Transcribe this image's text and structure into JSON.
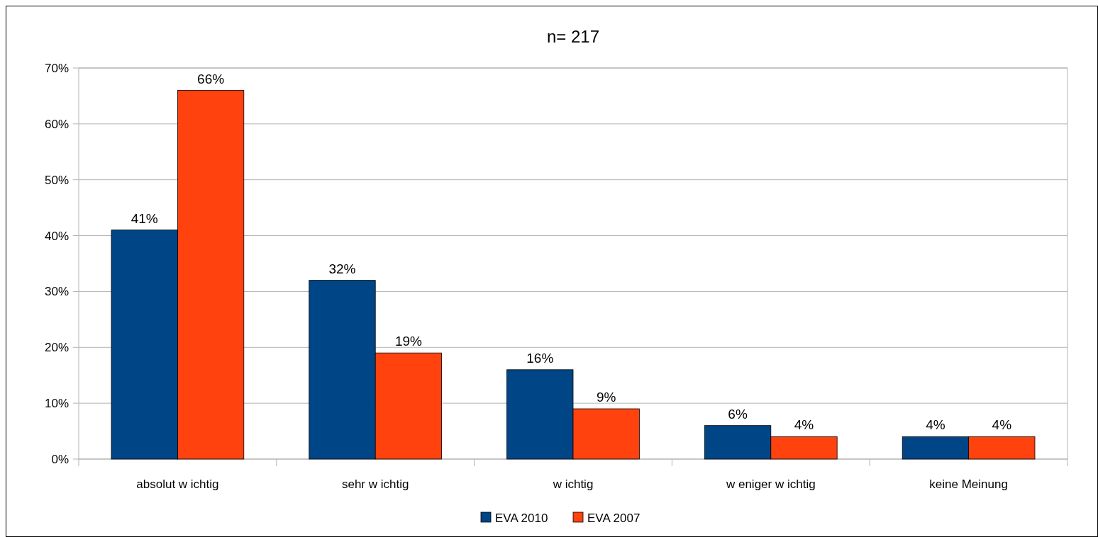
{
  "chart_data": {
    "type": "bar",
    "title": "n= 217",
    "categories": [
      "absolut w ichtig",
      "sehr w ichtig",
      "w ichtig",
      "w eniger w ichtig",
      "keine Meinung"
    ],
    "series": [
      {
        "name": "EVA 2010",
        "color": "#004586",
        "values": [
          41,
          32,
          16,
          6,
          4
        ],
        "value_labels": [
          "41%",
          "32%",
          "16%",
          "6%",
          "4%"
        ]
      },
      {
        "name": "EVA 2007",
        "color": "#ff420e",
        "values": [
          66,
          19,
          9,
          4,
          4
        ],
        "value_labels": [
          "66%",
          "19%",
          "9%",
          "4%",
          "4%"
        ]
      }
    ],
    "ylim": [
      0,
      70
    ],
    "yticks": [
      {
        "value": 0,
        "label": "0%"
      },
      {
        "value": 10,
        "label": "10%"
      },
      {
        "value": 20,
        "label": "20%"
      },
      {
        "value": 30,
        "label": "30%"
      },
      {
        "value": 40,
        "label": "40%"
      },
      {
        "value": 50,
        "label": "50%"
      },
      {
        "value": 60,
        "label": "60%"
      },
      {
        "value": 70,
        "label": "70%"
      }
    ],
    "grid": "y",
    "legend": "bottom"
  }
}
